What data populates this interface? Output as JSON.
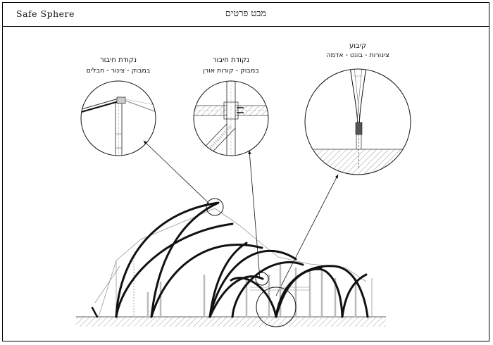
{
  "header": {
    "brand": "Safe Sphere",
    "title": "מבט פרטים"
  },
  "details": [
    {
      "title": "נקודת חיבור",
      "subtitle": "במבוק - צינור - חבלים"
    },
    {
      "title": "נקודת חיבור",
      "subtitle": "במבוק - קורות אורן"
    },
    {
      "title": "קיבוע",
      "subtitle": "צינורות - בונט - אדמה"
    }
  ]
}
